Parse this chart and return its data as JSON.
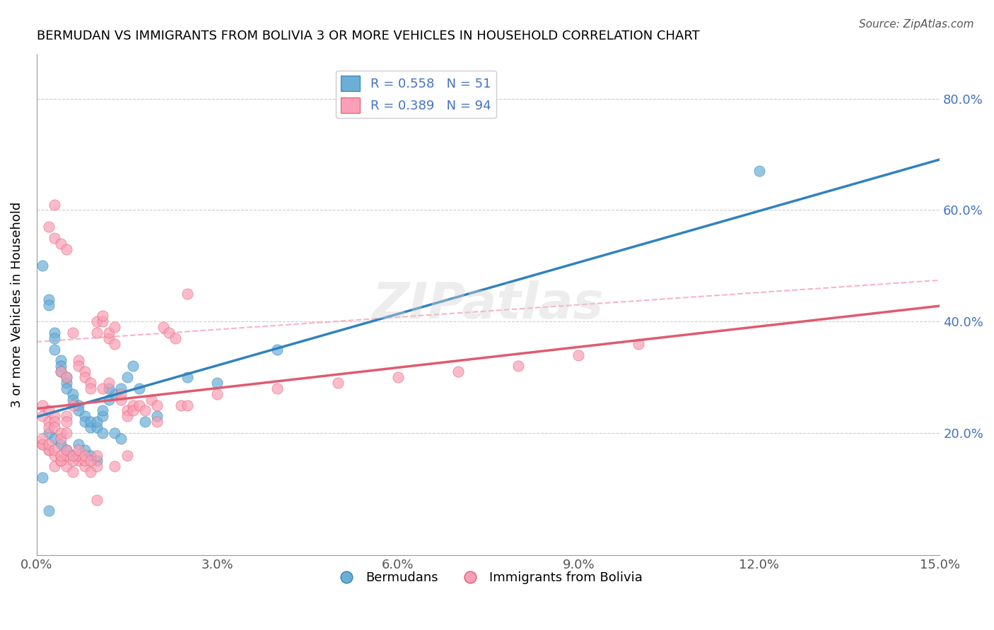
{
  "title": "BERMUDAN VS IMMIGRANTS FROM BOLIVIA 3 OR MORE VEHICLES IN HOUSEHOLD CORRELATION CHART",
  "source": "Source: ZipAtlas.com",
  "xlabel": "",
  "ylabel": "3 or more Vehicles in Household",
  "xlim": [
    0,
    0.15
  ],
  "ylim": [
    -0.02,
    0.88
  ],
  "yticks_right": [
    0.2,
    0.4,
    0.6,
    0.8
  ],
  "ytick_labels_right": [
    "20.0%",
    "40.0%",
    "60.0%",
    "80.0%"
  ],
  "xticks": [
    0.0,
    0.03,
    0.06,
    0.09,
    0.12,
    0.15
  ],
  "xtick_labels": [
    "0.0%",
    "3.0%",
    "6.0%",
    "9.0%",
    "12.0%",
    "15.0%"
  ],
  "legend1_R": "0.558",
  "legend1_N": "51",
  "legend2_R": "0.389",
  "legend2_N": "94",
  "color_blue": "#6baed6",
  "color_pink": "#fa9fb5",
  "line_blue": "#3182bd",
  "line_pink": "#e05a6e",
  "watermark": "ZIPatlas",
  "bermudans_x": [
    0.001,
    0.002,
    0.002,
    0.003,
    0.003,
    0.003,
    0.004,
    0.004,
    0.004,
    0.005,
    0.005,
    0.005,
    0.006,
    0.006,
    0.007,
    0.007,
    0.008,
    0.008,
    0.009,
    0.009,
    0.01,
    0.01,
    0.011,
    0.011,
    0.012,
    0.013,
    0.014,
    0.015,
    0.016,
    0.017,
    0.002,
    0.003,
    0.004,
    0.005,
    0.006,
    0.007,
    0.008,
    0.009,
    0.01,
    0.011,
    0.012,
    0.013,
    0.014,
    0.001,
    0.002,
    0.018,
    0.02,
    0.025,
    0.03,
    0.04,
    0.12
  ],
  "bermudans_y": [
    0.5,
    0.44,
    0.43,
    0.38,
    0.37,
    0.35,
    0.33,
    0.32,
    0.31,
    0.3,
    0.29,
    0.28,
    0.27,
    0.26,
    0.25,
    0.24,
    0.23,
    0.22,
    0.21,
    0.22,
    0.21,
    0.22,
    0.23,
    0.24,
    0.26,
    0.27,
    0.28,
    0.3,
    0.32,
    0.28,
    0.2,
    0.19,
    0.18,
    0.17,
    0.16,
    0.18,
    0.17,
    0.16,
    0.15,
    0.2,
    0.28,
    0.2,
    0.19,
    0.12,
    0.06,
    0.22,
    0.23,
    0.3,
    0.29,
    0.35,
    0.67
  ],
  "bolivia_x": [
    0.001,
    0.001,
    0.002,
    0.002,
    0.002,
    0.003,
    0.003,
    0.003,
    0.004,
    0.004,
    0.004,
    0.005,
    0.005,
    0.005,
    0.006,
    0.006,
    0.007,
    0.007,
    0.008,
    0.008,
    0.009,
    0.009,
    0.01,
    0.01,
    0.011,
    0.011,
    0.012,
    0.012,
    0.013,
    0.013,
    0.014,
    0.014,
    0.015,
    0.015,
    0.016,
    0.016,
    0.017,
    0.018,
    0.019,
    0.02,
    0.021,
    0.022,
    0.023,
    0.024,
    0.025,
    0.003,
    0.004,
    0.005,
    0.006,
    0.007,
    0.008,
    0.009,
    0.01,
    0.002,
    0.003,
    0.004,
    0.005,
    0.006,
    0.007,
    0.008,
    0.001,
    0.002,
    0.003,
    0.001,
    0.002,
    0.003,
    0.004,
    0.005,
    0.001,
    0.002,
    0.003,
    0.004,
    0.005,
    0.006,
    0.007,
    0.008,
    0.009,
    0.01,
    0.011,
    0.012,
    0.013,
    0.03,
    0.04,
    0.05,
    0.06,
    0.07,
    0.08,
    0.09,
    0.1,
    0.005,
    0.01,
    0.015,
    0.02,
    0.025
  ],
  "bolivia_y": [
    0.25,
    0.23,
    0.24,
    0.22,
    0.21,
    0.23,
    0.22,
    0.21,
    0.2,
    0.19,
    0.31,
    0.23,
    0.22,
    0.3,
    0.25,
    0.38,
    0.33,
    0.32,
    0.31,
    0.3,
    0.29,
    0.28,
    0.4,
    0.38,
    0.4,
    0.41,
    0.37,
    0.38,
    0.39,
    0.36,
    0.26,
    0.27,
    0.24,
    0.23,
    0.25,
    0.24,
    0.25,
    0.24,
    0.26,
    0.25,
    0.39,
    0.38,
    0.37,
    0.25,
    0.45,
    0.14,
    0.15,
    0.14,
    0.13,
    0.15,
    0.14,
    0.13,
    0.14,
    0.17,
    0.16,
    0.15,
    0.16,
    0.15,
    0.16,
    0.15,
    0.18,
    0.17,
    0.61,
    0.18,
    0.57,
    0.55,
    0.54,
    0.53,
    0.19,
    0.18,
    0.17,
    0.16,
    0.17,
    0.16,
    0.17,
    0.16,
    0.15,
    0.16,
    0.28,
    0.29,
    0.14,
    0.27,
    0.28,
    0.29,
    0.3,
    0.31,
    0.32,
    0.34,
    0.36,
    0.2,
    0.08,
    0.16,
    0.22,
    0.25
  ]
}
